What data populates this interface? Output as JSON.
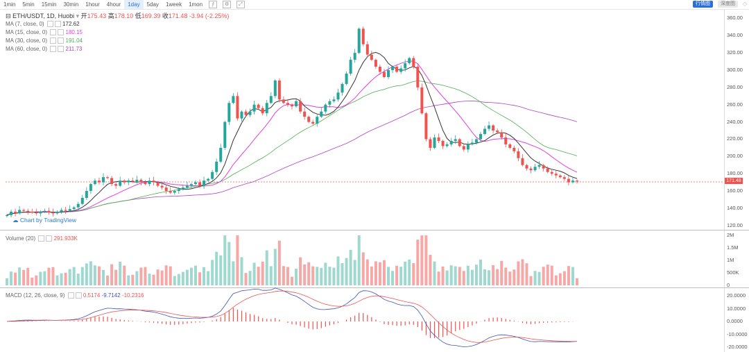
{
  "toolbar": {
    "intervals": [
      "1min",
      "5min",
      "15min",
      "30min",
      "1hour",
      "4hour",
      "1day",
      "5day",
      "1week",
      "1mon"
    ],
    "active_interval": "1day",
    "view_buttons": [
      "行情图",
      "深度图"
    ]
  },
  "header": {
    "symbol": "ETH/USDT, 1D, Huobi",
    "open_label": "开",
    "open": "175.43",
    "high_label": "高",
    "high": "178.10",
    "low_label": "低",
    "low": "169.39",
    "close_label": "收",
    "close": "171.48",
    "change": "-3.94 (-2.25%)"
  },
  "ma": [
    {
      "label": "MA (7, close, 0)",
      "value": "172.62",
      "color": "#333333"
    },
    {
      "label": "MA (15, close, 0)",
      "value": "180.15",
      "color": "#e040e0"
    },
    {
      "label": "MA (30, close, 0)",
      "value": "191.04",
      "color": "#4caf50"
    },
    {
      "label": "MA (60, close, 0)",
      "value": "211.73",
      "color": "#b040c0"
    }
  ],
  "watermark": "Chart by TradingView",
  "price_axis": [
    "360.00",
    "340.00",
    "320.00",
    "300.00",
    "280.00",
    "260.00",
    "240.00",
    "220.00",
    "200.00",
    "180.00",
    "160.00",
    "140.00",
    "120.00"
  ],
  "last_price_tag": "171.48",
  "volume": {
    "label": "Volume (20)",
    "value": "291.933K",
    "axis": [
      "2M",
      "1.5M",
      "1M",
      "500K",
      "0"
    ]
  },
  "macd": {
    "label": "MACD (12, 26, close, 9)",
    "v1": "0.5174",
    "v2": "-9.7142",
    "v3": "-10.2316",
    "axis": [
      "20.0000",
      "10.0000",
      "0.0000",
      "-10.0000",
      "-20.0000"
    ]
  },
  "colors": {
    "up": "#26a69a",
    "down": "#ef5350",
    "vol_up": "#9fd8cf",
    "vol_down": "#f5a8a6",
    "macd": "#3f51b5",
    "signal": "#ef5350"
  },
  "chart_data": {
    "type": "candlestick",
    "title": "ETH/USDT, 1D, Huobi",
    "ylim": [
      115,
      370
    ],
    "close": [
      132,
      136,
      134,
      138,
      137,
      136,
      135,
      134,
      136,
      137,
      135,
      134,
      136,
      138,
      137,
      139,
      141,
      145,
      152,
      160,
      168,
      172,
      170,
      176,
      175,
      168,
      166,
      172,
      170,
      172,
      171,
      173,
      170,
      168,
      172,
      170,
      166,
      164,
      160,
      158,
      160,
      162,
      164,
      166,
      168,
      170,
      166,
      172,
      174,
      182,
      194,
      210,
      240,
      262,
      270,
      244,
      252,
      248,
      252,
      260,
      256,
      250,
      262,
      270,
      288,
      266,
      262,
      260,
      258,
      264,
      252,
      246,
      240,
      238,
      246,
      252,
      260,
      264,
      266,
      274,
      284,
      296,
      312,
      320,
      348,
      330,
      318,
      312,
      304,
      298,
      292,
      300,
      304,
      298,
      302,
      308,
      314,
      304,
      280,
      250,
      220,
      210,
      222,
      218,
      212,
      214,
      218,
      220,
      212,
      208,
      214,
      216,
      220,
      226,
      232,
      236,
      230,
      228,
      222,
      214,
      210,
      206,
      198,
      190,
      186,
      184,
      188,
      190,
      186,
      182,
      180,
      178,
      176,
      174,
      170,
      172,
      171
    ]
  }
}
